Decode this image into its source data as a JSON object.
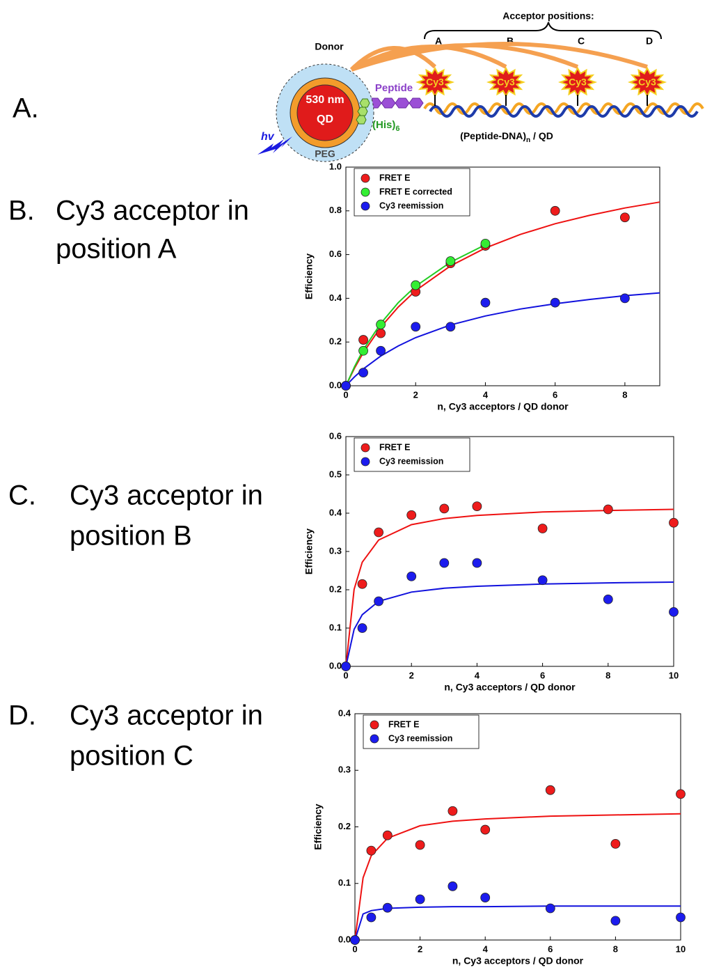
{
  "diagram": {
    "panel": "A.",
    "donor": "Donor",
    "qd_size": "530 nm",
    "qd": "QD",
    "peg": "PEG",
    "hv": "hv",
    "peptide": "Peptide",
    "his": {
      "text": "(His)",
      "sub": "6"
    },
    "acceptor_positions": "Acceptor positions:",
    "positions": [
      "A",
      "B",
      "C",
      "D"
    ],
    "dyes": [
      "Cy3",
      "Cy3",
      "Cy3",
      "Cy3"
    ],
    "construct": {
      "text": "(Peptide-DNA)",
      "sub": "n",
      "rest": " / QD"
    }
  },
  "panels": [
    {
      "label": "B.",
      "lines": [
        "Cy3 acceptor in",
        "position A"
      ]
    },
    {
      "label": "C.",
      "lines": [
        "Cy3 acceptor in",
        "position B"
      ]
    },
    {
      "label": "D.",
      "lines": [
        "Cy3 acceptor in",
        "position C"
      ]
    }
  ],
  "chart_data": [
    {
      "type": "scatter",
      "xlabel": "n, Cy3 acceptors / QD donor",
      "ylabel": "Efficiency",
      "xlim": [
        0,
        9
      ],
      "ylim": [
        0,
        1
      ],
      "xticks": [
        0,
        2,
        4,
        6,
        8
      ],
      "yticks": [
        {
          "value": 0,
          "label": "0.0"
        },
        {
          "value": 0.2,
          "label": "0.2"
        },
        {
          "value": 0.4,
          "label": "0.4"
        },
        {
          "value": 0.6,
          "label": "0.6"
        },
        {
          "value": 0.8,
          "label": "0.8"
        },
        {
          "value": 1,
          "label": "1.0"
        }
      ],
      "legend": "top-left",
      "series": [
        {
          "name": "FRET E",
          "color": "#ee1c1c",
          "x": [
            0,
            0.5,
            1,
            2,
            3,
            4,
            6,
            8
          ],
          "values": [
            0,
            0.21,
            0.24,
            0.43,
            0.56,
            0.64,
            0.8,
            0.77
          ]
        },
        {
          "name": "FRET E corrected",
          "color": "#33ee33",
          "x": [
            0,
            0.5,
            1,
            2,
            3,
            4
          ],
          "values": [
            0,
            0.16,
            0.28,
            0.46,
            0.57,
            0.65
          ]
        },
        {
          "name": "Cy3 reemission",
          "color": "#1c1cee",
          "x": [
            0,
            0.5,
            1,
            2,
            3,
            4,
            6,
            8
          ],
          "values": [
            0,
            0.06,
            0.16,
            0.27,
            0.27,
            0.38,
            0.38,
            0.4
          ]
        }
      ],
      "fits": [
        {
          "color": "#ee1111",
          "x": [
            0,
            0.25,
            0.5,
            1,
            1.5,
            2,
            3,
            4,
            5,
            6,
            7,
            8,
            9
          ],
          "values": [
            0,
            0.0813,
            0.152,
            0.268,
            0.36,
            0.435,
            0.548,
            0.63,
            0.692,
            0.741,
            0.78,
            0.813,
            0.84
          ]
        },
        {
          "color": "#22cc22",
          "x": [
            0,
            0.25,
            0.5,
            1,
            1.5,
            2,
            3,
            4
          ],
          "values": [
            0,
            0.088,
            0.165,
            0.285,
            0.38,
            0.455,
            0.565,
            0.645
          ]
        },
        {
          "color": "#1111dd",
          "x": [
            0,
            0.25,
            0.5,
            1,
            1.5,
            2,
            3,
            4,
            5,
            6,
            7,
            8,
            9
          ],
          "values": [
            0,
            0.041,
            0.077,
            0.136,
            0.182,
            0.22,
            0.278,
            0.319,
            0.351,
            0.375,
            0.395,
            0.412,
            0.425
          ]
        }
      ]
    },
    {
      "type": "scatter",
      "xlabel": "n, Cy3 acceptors / QD donor",
      "ylabel": "Efficiency",
      "xlim": [
        0,
        10
      ],
      "ylim": [
        0,
        0.6
      ],
      "xticks": [
        0,
        2,
        4,
        6,
        8,
        10
      ],
      "yticks": [
        {
          "value": 0,
          "label": "0.0"
        },
        {
          "value": 0.1,
          "label": "0.1"
        },
        {
          "value": 0.2,
          "label": "0.2"
        },
        {
          "value": 0.3,
          "label": "0.3"
        },
        {
          "value": 0.4,
          "label": "0.4"
        },
        {
          "value": 0.5,
          "label": "0.5"
        },
        {
          "value": 0.6,
          "label": "0.6"
        }
      ],
      "legend": "top-left",
      "series": [
        {
          "name": "FRET E",
          "color": "#ee1c1c",
          "x": [
            0,
            0.5,
            1,
            2,
            3,
            4,
            6,
            8,
            10
          ],
          "values": [
            0,
            0.215,
            0.35,
            0.395,
            0.412,
            0.418,
            0.36,
            0.41,
            0.375
          ]
        },
        {
          "name": "Cy3 reemission",
          "color": "#1c1cee",
          "x": [
            0,
            0.5,
            1,
            2,
            3,
            4,
            6,
            8,
            10
          ],
          "values": [
            0,
            0.1,
            0.17,
            0.235,
            0.27,
            0.27,
            0.225,
            0.175,
            0.142
          ]
        }
      ],
      "fits": [
        {
          "color": "#ee1111",
          "x": [
            0,
            0.25,
            0.5,
            1,
            2,
            3,
            4,
            6,
            8,
            10
          ],
          "values": [
            0,
            0.201,
            0.272,
            0.33,
            0.37,
            0.386,
            0.394,
            0.403,
            0.407,
            0.41
          ]
        },
        {
          "color": "#1111dd",
          "x": [
            0,
            0.25,
            0.5,
            1,
            2,
            3,
            4,
            6,
            8,
            10
          ],
          "values": [
            0,
            0.0965,
            0.135,
            0.17,
            0.194,
            0.204,
            0.209,
            0.215,
            0.218,
            0.22
          ]
        }
      ]
    },
    {
      "type": "scatter",
      "xlabel": "n, Cy3 acceptors / QD donor",
      "ylabel": "Efficiency",
      "xlim": [
        0,
        10
      ],
      "ylim": [
        0,
        0.4
      ],
      "xticks": [
        0,
        2,
        4,
        6,
        8,
        10
      ],
      "yticks": [
        {
          "value": 0,
          "label": "0.0"
        },
        {
          "value": 0.1,
          "label": "0.1"
        },
        {
          "value": 0.2,
          "label": "0.2"
        },
        {
          "value": 0.3,
          "label": "0.3"
        },
        {
          "value": 0.4,
          "label": "0.4"
        }
      ],
      "legend": "top-left",
      "series": [
        {
          "name": "FRET E",
          "color": "#ee1c1c",
          "x": [
            0,
            0.5,
            1,
            2,
            3,
            4,
            6,
            8,
            10
          ],
          "values": [
            0,
            0.158,
            0.185,
            0.168,
            0.228,
            0.195,
            0.265,
            0.17,
            0.258
          ]
        },
        {
          "name": "Cy3 reemission",
          "color": "#1c1cee",
          "x": [
            0,
            0.5,
            1,
            2,
            3,
            4,
            6,
            8,
            10
          ],
          "values": [
            0,
            0.04,
            0.057,
            0.072,
            0.095,
            0.075,
            0.056,
            0.034,
            0.04
          ]
        }
      ],
      "fits": [
        {
          "color": "#ee1111",
          "x": [
            0,
            0.25,
            0.5,
            1,
            2,
            3,
            4,
            6,
            8,
            10
          ],
          "values": [
            0,
            0.11,
            0.149,
            0.18,
            0.202,
            0.21,
            0.214,
            0.219,
            0.221,
            0.223
          ]
        },
        {
          "color": "#1111dd",
          "x": [
            0,
            0.25,
            0.5,
            1,
            2,
            3,
            4,
            6,
            8,
            10
          ],
          "values": [
            0,
            0.046,
            0.052,
            0.056,
            0.058,
            0.059,
            0.059,
            0.06,
            0.06,
            0.06
          ]
        }
      ]
    }
  ]
}
